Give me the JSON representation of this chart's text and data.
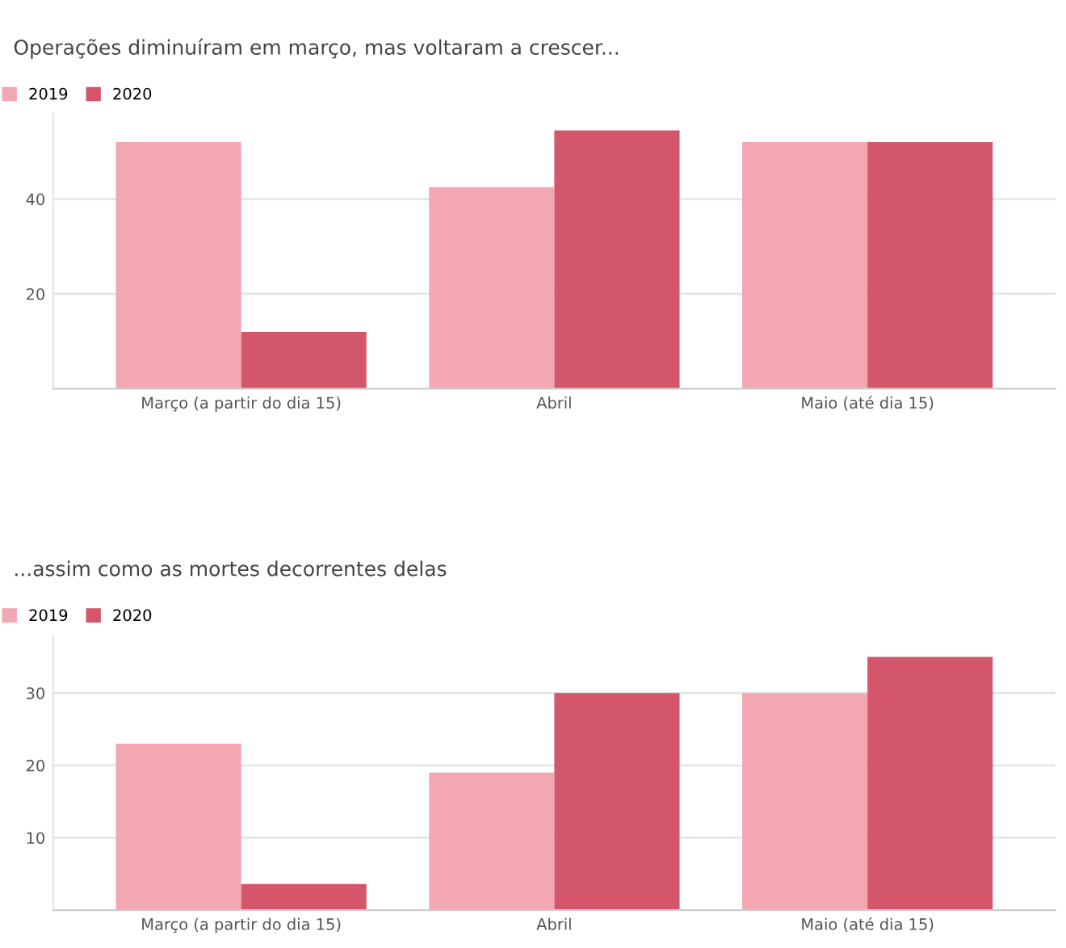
{
  "chart_data": [
    {
      "type": "bar",
      "title": "Operações diminuíram em março, mas voltaram a crescer...",
      "categories": [
        "Março (a partir do dia 15)",
        "Abril",
        "Maio (até dia 15)"
      ],
      "series": [
        {
          "name": "2019",
          "color": "#f2a7b2",
          "values": [
            52,
            42.5,
            52
          ]
        },
        {
          "name": "2020",
          "color": "#d4566b",
          "values": [
            12,
            54.5,
            52
          ]
        }
      ],
      "ylim": [
        0,
        58
      ],
      "yticks": [
        20,
        40
      ],
      "grid": "y",
      "legend": "top left"
    },
    {
      "type": "bar",
      "title": "...assim como as mortes decorrentes delas",
      "categories": [
        "Março (a partir do dia 15)",
        "Abril",
        "Maio (até dia 15)"
      ],
      "series": [
        {
          "name": "2019",
          "color": "#f2a7b2",
          "values": [
            23,
            19,
            30
          ]
        },
        {
          "name": "2020",
          "color": "#d4566b",
          "values": [
            3.6,
            30,
            35
          ]
        }
      ],
      "ylim": [
        0,
        38
      ],
      "yticks": [
        10,
        20,
        30
      ],
      "grid": "y",
      "legend": "top left"
    }
  ]
}
